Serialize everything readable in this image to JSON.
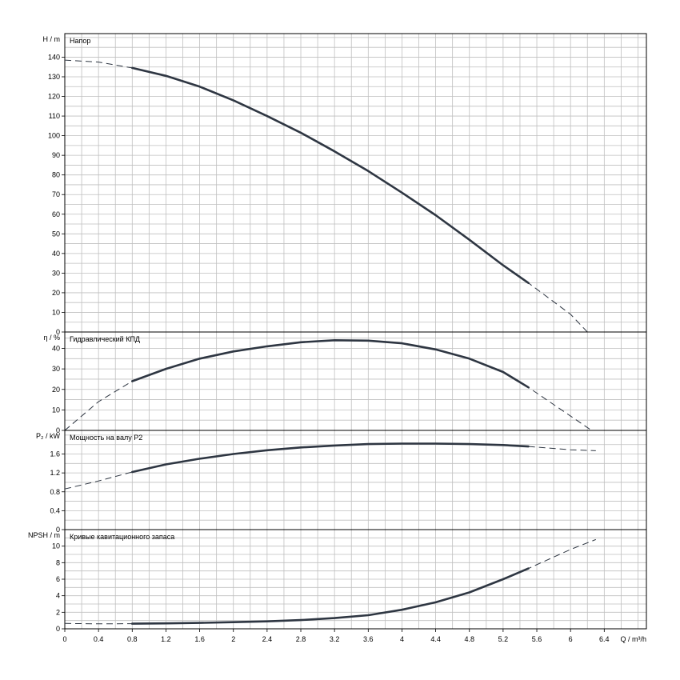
{
  "chart_data": {
    "type": "line",
    "x_axis": {
      "label": "Q / m³/h",
      "ticks": [
        "0",
        "0.4",
        "0.8",
        "1.2",
        "1.6",
        "2",
        "2.4",
        "2.8",
        "3.2",
        "3.6",
        "4",
        "4.4",
        "4.8",
        "5.2",
        "5.6",
        "6",
        "6.4"
      ],
      "xlim": [
        0,
        6.9
      ],
      "grid_step": 0.2
    },
    "panels": [
      {
        "id": "head",
        "title": "Напор",
        "ylabel": "H / m",
        "ylim": [
          0,
          152
        ],
        "ticks": [
          0,
          10,
          20,
          30,
          40,
          50,
          60,
          70,
          80,
          90,
          100,
          110,
          120,
          130,
          140
        ],
        "grid_step": 5,
        "solid_range": [
          0.5,
          5.5
        ],
        "points": [
          [
            0,
            138.5
          ],
          [
            0.4,
            137.5
          ],
          [
            0.8,
            134.5
          ],
          [
            1.2,
            130.5
          ],
          [
            1.6,
            125
          ],
          [
            2,
            118
          ],
          [
            2.4,
            110
          ],
          [
            2.8,
            101.5
          ],
          [
            3.2,
            92
          ],
          [
            3.6,
            82
          ],
          [
            4,
            71
          ],
          [
            4.4,
            59.5
          ],
          [
            4.8,
            47
          ],
          [
            5.2,
            34
          ],
          [
            5.5,
            25
          ],
          [
            6,
            9
          ],
          [
            6.2,
            0
          ]
        ]
      },
      {
        "id": "efficiency",
        "title": "Гидравлический КПД",
        "ylabel": "η / %",
        "ylim": [
          0,
          48
        ],
        "ticks": [
          0,
          10,
          20,
          30,
          40
        ],
        "grid_step": 5,
        "solid_range": [
          0.5,
          5.5
        ],
        "points": [
          [
            0,
            0
          ],
          [
            0.4,
            14
          ],
          [
            0.8,
            24
          ],
          [
            1.2,
            30
          ],
          [
            1.6,
            35
          ],
          [
            2,
            38.5
          ],
          [
            2.4,
            41
          ],
          [
            2.8,
            43
          ],
          [
            3.2,
            44
          ],
          [
            3.6,
            43.8
          ],
          [
            4,
            42.5
          ],
          [
            4.4,
            39.5
          ],
          [
            4.8,
            35
          ],
          [
            5.2,
            28.5
          ],
          [
            5.5,
            21
          ],
          [
            6,
            7
          ],
          [
            6.25,
            0
          ]
        ]
      },
      {
        "id": "power",
        "title": "Мощность на валу P2",
        "ylabel": "P₂ / kW",
        "ylim": [
          0,
          2.1
        ],
        "ticks": [
          "0",
          "0.4",
          "0.8",
          "1.2",
          "1.6"
        ],
        "tick_values": [
          0,
          0.4,
          0.8,
          1.2,
          1.6
        ],
        "grid_step": 0.2,
        "solid_range": [
          0.5,
          5.5
        ],
        "points": [
          [
            0,
            0.86
          ],
          [
            0.4,
            1.03
          ],
          [
            0.8,
            1.22
          ],
          [
            1.2,
            1.38
          ],
          [
            1.6,
            1.5
          ],
          [
            2,
            1.6
          ],
          [
            2.4,
            1.68
          ],
          [
            2.8,
            1.74
          ],
          [
            3.2,
            1.78
          ],
          [
            3.6,
            1.81
          ],
          [
            4,
            1.82
          ],
          [
            4.4,
            1.82
          ],
          [
            4.8,
            1.81
          ],
          [
            5.2,
            1.79
          ],
          [
            5.5,
            1.76
          ],
          [
            6,
            1.69
          ],
          [
            6.3,
            1.67
          ]
        ]
      },
      {
        "id": "npsh",
        "title": "Кривые кавитационного запаса",
        "ylabel": "NPSH / m",
        "ylim": [
          0,
          12
        ],
        "ticks": [
          0,
          2,
          4,
          6,
          8,
          10
        ],
        "grid_step": 1,
        "solid_range": [
          0.5,
          5.5
        ],
        "points": [
          [
            0,
            0.65
          ],
          [
            0.4,
            0.6
          ],
          [
            0.8,
            0.62
          ],
          [
            1.2,
            0.66
          ],
          [
            1.6,
            0.72
          ],
          [
            2,
            0.8
          ],
          [
            2.4,
            0.9
          ],
          [
            2.8,
            1.05
          ],
          [
            3.2,
            1.3
          ],
          [
            3.6,
            1.65
          ],
          [
            4,
            2.3
          ],
          [
            4.4,
            3.2
          ],
          [
            4.8,
            4.4
          ],
          [
            5.2,
            6
          ],
          [
            5.5,
            7.3
          ],
          [
            6,
            9.6
          ],
          [
            6.3,
            10.8
          ]
        ]
      }
    ]
  }
}
